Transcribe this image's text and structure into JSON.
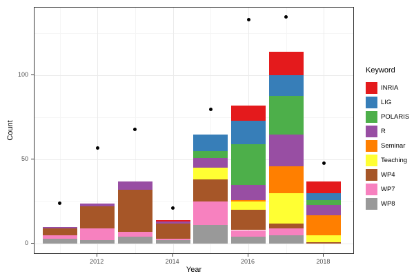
{
  "chart_data": {
    "type": "bar",
    "stacked": true,
    "title": "",
    "xlabel": "Year",
    "ylabel": "Count",
    "legend_title": "Keyword",
    "legend_position": "right",
    "grid": true,
    "categories": [
      2011,
      2012,
      2013,
      2014,
      2015,
      2016,
      2017,
      2018
    ],
    "x_ticks": [
      2012,
      2014,
      2016,
      2018
    ],
    "x_minor_ticks": [
      2011,
      2013,
      2015,
      2017
    ],
    "y_ticks": [
      0,
      50,
      100
    ],
    "y_minor_ticks": [
      25,
      75,
      125
    ],
    "ylim": [
      -4,
      143
    ],
    "series": [
      {
        "name": "INRIA",
        "color": "#E41A1C",
        "values": [
          0,
          0,
          0,
          1,
          0,
          9,
          14,
          7
        ]
      },
      {
        "name": "LIG",
        "color": "#377EB8",
        "values": [
          0,
          0,
          0,
          0,
          10,
          14,
          12,
          4
        ]
      },
      {
        "name": "POLARIS",
        "color": "#4DAF4A",
        "values": [
          0,
          0,
          0,
          0,
          4,
          24,
          23,
          3
        ]
      },
      {
        "name": "R",
        "color": "#984EA3",
        "values": [
          1,
          2,
          5,
          1,
          6,
          9,
          19,
          6
        ]
      },
      {
        "name": "Seminar",
        "color": "#FF7F00",
        "values": [
          0,
          0,
          0,
          0,
          0,
          1,
          16,
          12
        ]
      },
      {
        "name": "Teaching",
        "color": "#FFFF33",
        "values": [
          0,
          0,
          0,
          0,
          7,
          5,
          18,
          4
        ]
      },
      {
        "name": "WP4",
        "color": "#A65628",
        "values": [
          4,
          13,
          25,
          9,
          13,
          12,
          3,
          1
        ]
      },
      {
        "name": "WP7",
        "color": "#F781BF",
        "values": [
          2,
          7,
          3,
          1,
          14,
          4,
          4,
          0
        ]
      },
      {
        "name": "WP8",
        "color": "#999999",
        "values": [
          3,
          2,
          4,
          2,
          11,
          4,
          5,
          0
        ]
      }
    ],
    "points": {
      "name": "total-points",
      "color": "#000000",
      "values": [
        24,
        57,
        68,
        21,
        80,
        133,
        135,
        48
      ]
    },
    "bar_totals": [
      10,
      24,
      37,
      14,
      65,
      82,
      114,
      37
    ]
  }
}
